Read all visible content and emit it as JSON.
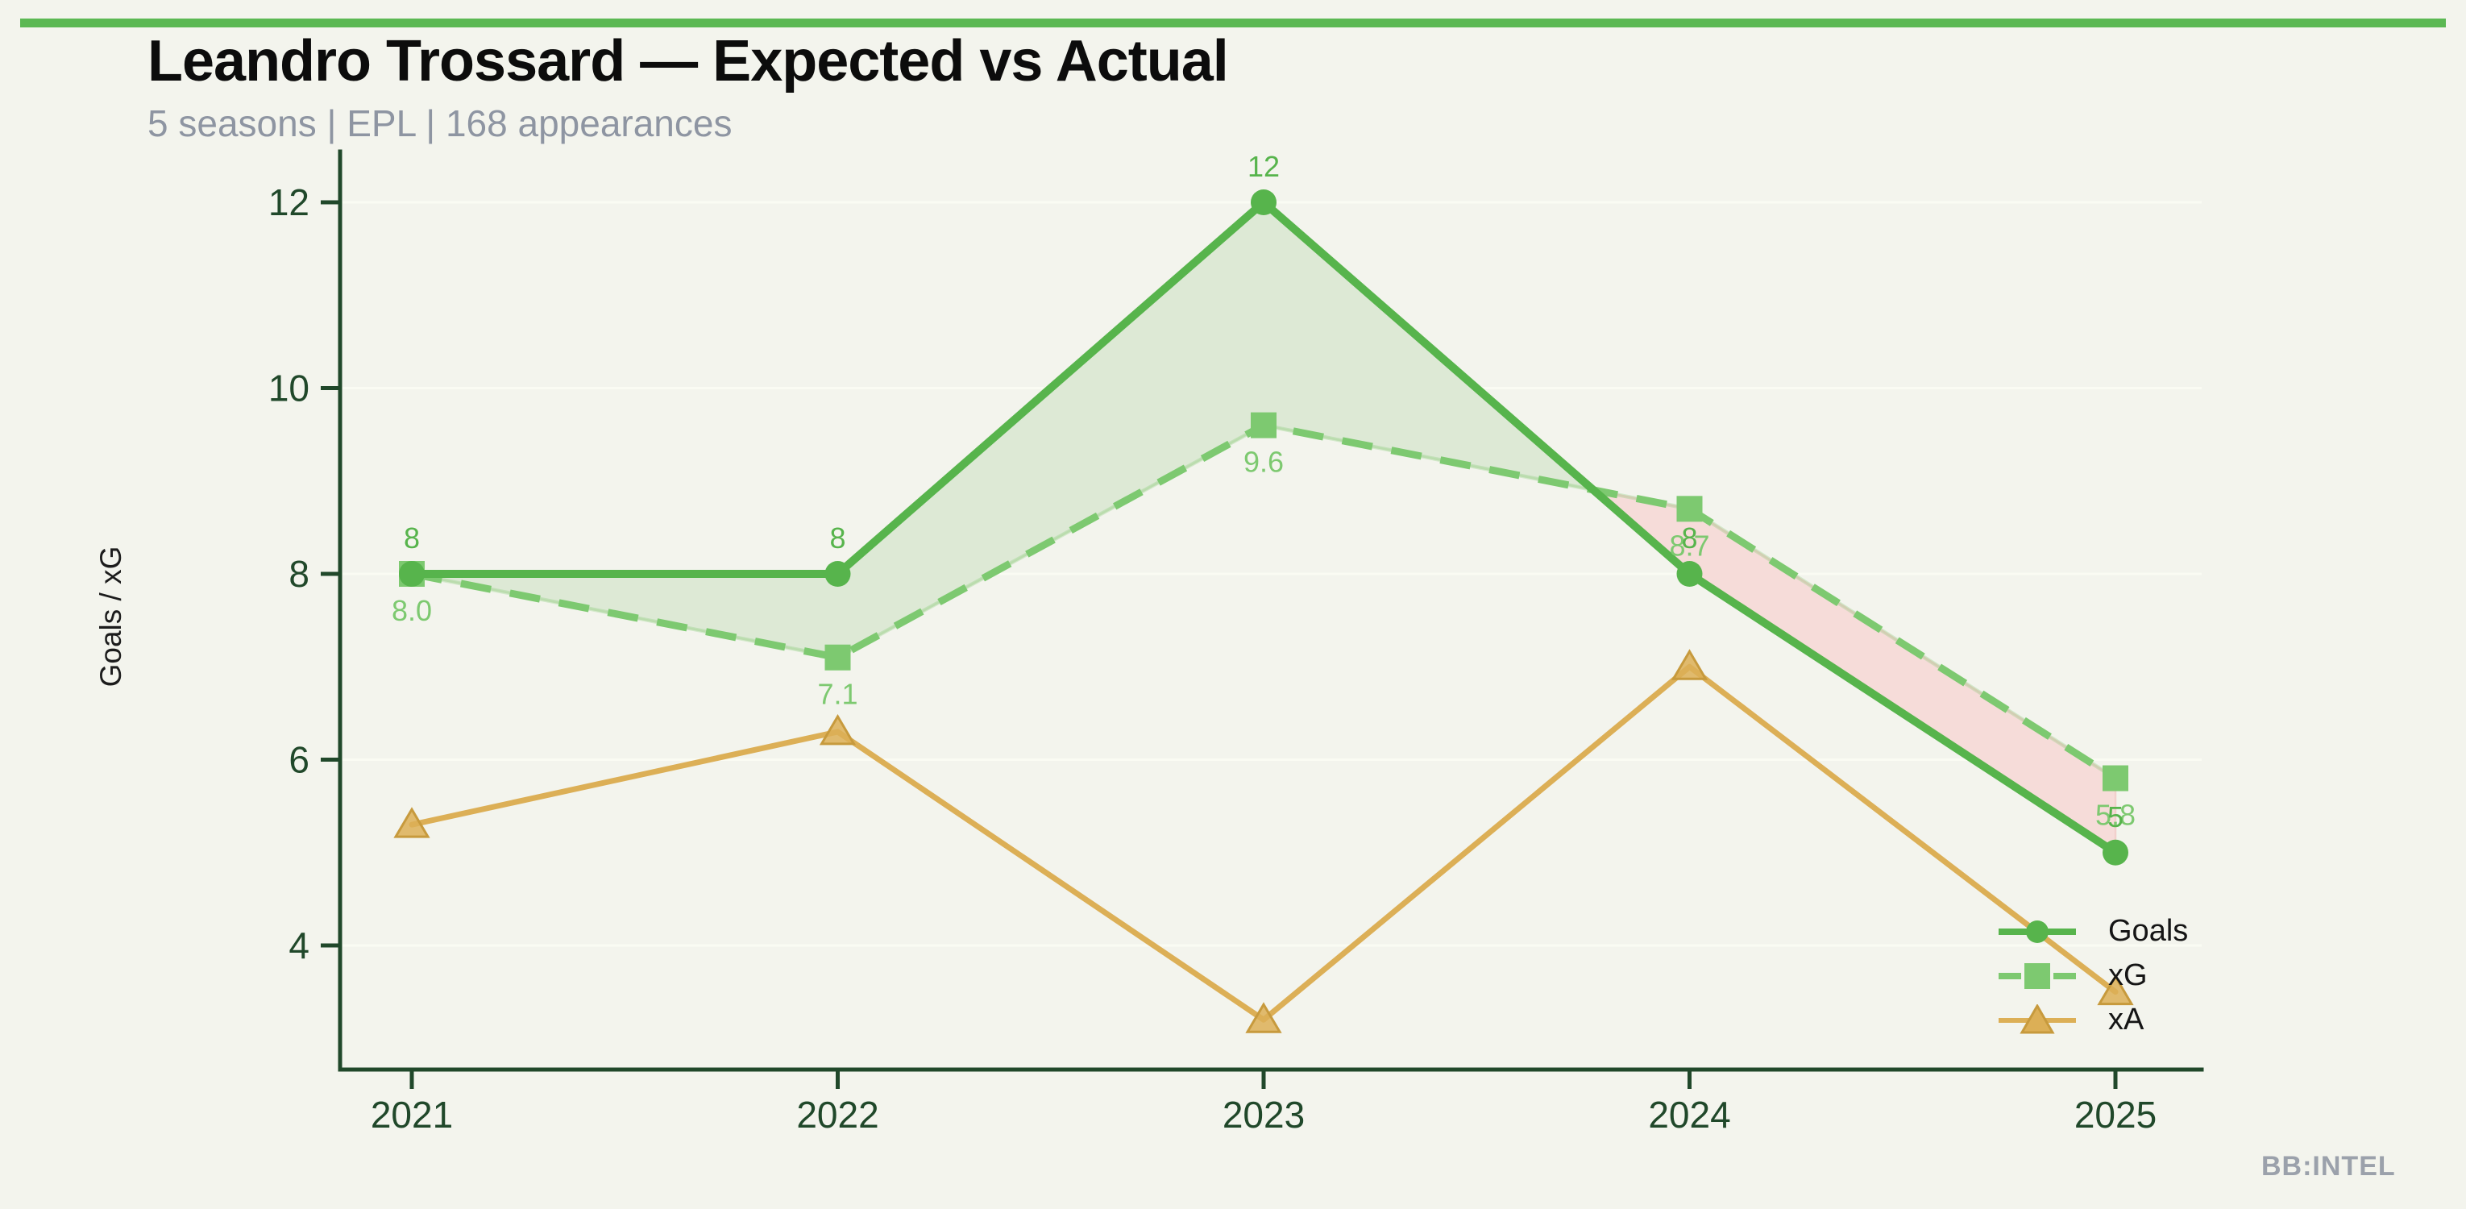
{
  "page": {
    "background": "#f3f4ed",
    "accent_bar_color": "#5bb853"
  },
  "header": {
    "title": "Leandro Trossard — Expected vs Actual",
    "subtitle": "5 seasons | EPL | 168 appearances"
  },
  "watermark": "BB:INTEL",
  "chart_data": {
    "type": "line",
    "title": "Leandro Trossard — Expected vs Actual",
    "subtitle": "5 seasons | EPL | 168 appearances",
    "categories": [
      "2021",
      "2022",
      "2023",
      "2024",
      "2025"
    ],
    "series": [
      {
        "name": "Goals",
        "values": [
          8,
          8,
          12,
          8,
          5
        ],
        "labels": [
          "8",
          "8",
          "12",
          "8",
          "5"
        ],
        "color": "#57b44c",
        "line_style": "solid",
        "marker": "circle"
      },
      {
        "name": "xG",
        "values": [
          8.0,
          7.1,
          9.6,
          8.7,
          5.8
        ],
        "labels": [
          "8.0",
          "7.1",
          "9.6",
          "8.7",
          "5.8"
        ],
        "color": "#7dc970",
        "line_style": "dashed",
        "marker": "square"
      },
      {
        "name": "xA",
        "values": [
          5.3,
          6.3,
          3.2,
          7.0,
          3.5
        ],
        "labels": null,
        "color": "#dcaf56",
        "edge_color": "#c79a3d",
        "line_style": "solid",
        "marker": "triangle"
      }
    ],
    "xlabel": "",
    "ylabel": "Goals / xG",
    "yticks": [
      4,
      6,
      8,
      10,
      12
    ],
    "ylim": [
      2.6,
      12.55
    ],
    "grid": "faint-horizontal",
    "legend_position": "lower-right",
    "axis_color": "#20482a",
    "fill_between": {
      "series": [
        "Goals",
        "xG"
      ],
      "positive_color": "#dde9d5",
      "positive_edge": "#d2e4c5",
      "negative_color": "#f6dcd9",
      "negative_edge": "#f2d0cc"
    }
  }
}
